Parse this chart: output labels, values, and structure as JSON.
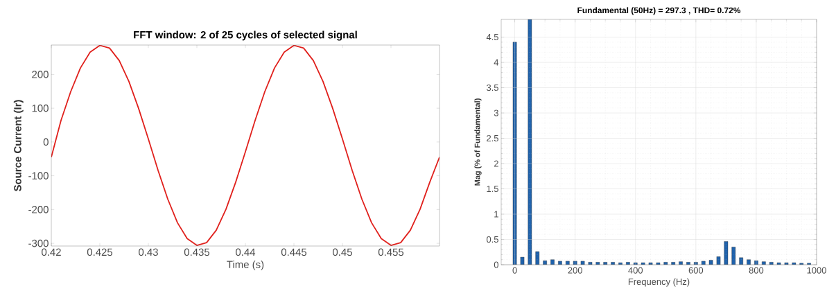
{
  "chart_data": [
    {
      "type": "line",
      "title": "FFT window: 2 of 25 cycles of selected signal",
      "xlabel": "Time (s)",
      "ylabel": "Source Current (Ir)",
      "x": [
        0.42,
        0.421,
        0.422,
        0.423,
        0.424,
        0.425,
        0.426,
        0.427,
        0.428,
        0.429,
        0.43,
        0.431,
        0.432,
        0.433,
        0.434,
        0.435,
        0.436,
        0.437,
        0.438,
        0.439,
        0.44,
        0.441,
        0.442,
        0.443,
        0.444,
        0.445,
        0.446,
        0.447,
        0.448,
        0.449,
        0.45,
        0.451,
        0.452,
        0.453,
        0.454,
        0.455,
        0.456,
        0.457,
        0.458,
        0.459,
        0.46
      ],
      "series": [
        {
          "color": "#e0201c",
          "values": [
            -45,
            64,
            149,
            219,
            266,
            286,
            278,
            241,
            179,
            99,
            9,
            -84,
            -169,
            -239,
            -286,
            -306,
            -298,
            -261,
            -199,
            -119,
            -29,
            64,
            149,
            219,
            266,
            286,
            278,
            241,
            179,
            99,
            9,
            -84,
            -169,
            -239,
            -286,
            -306,
            -298,
            -261,
            -199,
            -119,
            -45
          ]
        }
      ],
      "xlim": [
        0.42,
        0.46
      ],
      "xticks": [
        0.42,
        0.425,
        0.43,
        0.435,
        0.44,
        0.445,
        0.45,
        0.455
      ],
      "ylim": [
        -308,
        287
      ],
      "yticks": [
        -300,
        -200,
        -100,
        0,
        100,
        200
      ],
      "grid": false
    },
    {
      "type": "bar",
      "title": "Fundamental (50Hz) = 297.3 , THD= 0.72%",
      "xlabel": "Frequency (Hz)",
      "ylabel": "Mag (% of Fundamental)",
      "x": [
        0,
        25,
        50,
        75,
        100,
        125,
        150,
        175,
        200,
        225,
        250,
        275,
        300,
        325,
        350,
        375,
        400,
        425,
        450,
        475,
        500,
        525,
        550,
        575,
        600,
        625,
        650,
        675,
        700,
        725,
        750,
        775,
        800,
        825,
        850,
        875,
        900,
        925,
        950,
        975
      ],
      "series": [
        {
          "color": "#1f62ac",
          "values": [
            4.4,
            0.15,
            4.85,
            0.26,
            0.08,
            0.1,
            0.07,
            0.07,
            0.07,
            0.07,
            0.05,
            0.05,
            0.05,
            0.05,
            0.04,
            0.05,
            0.04,
            0.04,
            0.04,
            0.04,
            0.05,
            0.05,
            0.06,
            0.05,
            0.05,
            0.07,
            0.09,
            0.16,
            0.46,
            0.35,
            0.14,
            0.1,
            0.08,
            0.06,
            0.05,
            0.04,
            0.04,
            0.04,
            0.03,
            0.03
          ]
        }
      ],
      "xlim": [
        -45,
        1000
      ],
      "xticks": [
        0,
        200,
        400,
        600,
        800,
        1000
      ],
      "ylim": [
        0,
        4.85
      ],
      "yticks": [
        0,
        0.5,
        1,
        1.5,
        2,
        2.5,
        3,
        3.5,
        4,
        4.5
      ],
      "grid": true
    }
  ]
}
